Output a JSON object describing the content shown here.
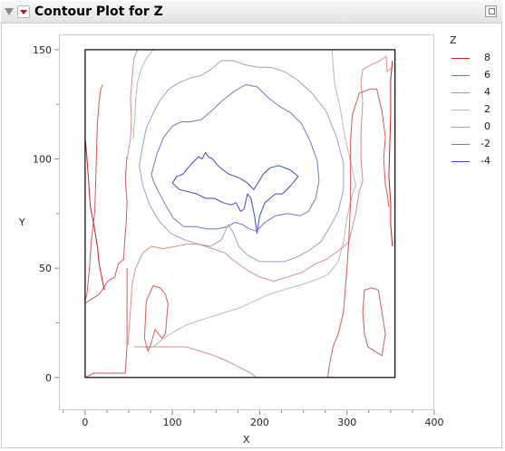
{
  "report": {
    "title": "Contour Plot for Z"
  },
  "colors": {
    "8": "#cc1f1f",
    "6": "#d45a5a",
    "4": "#d58f8f",
    "2": "#b8b8b8",
    "0": "#9aa0c8",
    "-2": "#6f78c8",
    "-4": "#3a48c2"
  },
  "chart_data": {
    "type": "contour",
    "xlabel": "X",
    "ylabel": "Y",
    "xlim": [
      -30,
      400
    ],
    "ylim": [
      -15,
      157
    ],
    "xticks": [
      0,
      100,
      200,
      300,
      400
    ],
    "yticks": [
      0,
      50,
      100,
      150
    ],
    "x_minor_step": 25,
    "y_minor_step": 25,
    "data_extent": {
      "x": [
        0,
        355
      ],
      "y": [
        0,
        150
      ]
    },
    "legend": {
      "title": "Z",
      "position": "right",
      "levels": [
        "8",
        "6",
        "4",
        "2",
        "0",
        "-2",
        "-4"
      ]
    },
    "contours": [
      {
        "level": -4,
        "points": [
          [
            100,
            89
          ],
          [
            105,
            92
          ],
          [
            112,
            93
          ],
          [
            118,
            96
          ],
          [
            125,
            99
          ],
          [
            130,
            101
          ],
          [
            134,
            100
          ],
          [
            138,
            103
          ],
          [
            141,
            101
          ],
          [
            146,
            100
          ],
          [
            152,
            97
          ],
          [
            158,
            95
          ],
          [
            165,
            93
          ],
          [
            172,
            92
          ],
          [
            178,
            91
          ],
          [
            186,
            89
          ],
          [
            193,
            86
          ],
          [
            198,
            89
          ],
          [
            204,
            93
          ],
          [
            212,
            96
          ],
          [
            222,
            97
          ],
          [
            235,
            95
          ],
          [
            244,
            92
          ],
          [
            236,
            88
          ],
          [
            226,
            84
          ],
          [
            218,
            84
          ],
          [
            212,
            82
          ],
          [
            206,
            80
          ],
          [
            200,
            74
          ],
          [
            197,
            66
          ],
          [
            194,
            74
          ],
          [
            190,
            82
          ],
          [
            186,
            84
          ],
          [
            182,
            77
          ],
          [
            178,
            76
          ],
          [
            173,
            80
          ],
          [
            167,
            79
          ],
          [
            158,
            80
          ],
          [
            148,
            82
          ],
          [
            138,
            82
          ],
          [
            128,
            84
          ],
          [
            118,
            85
          ],
          [
            108,
            86
          ],
          [
            100,
            89
          ]
        ]
      },
      {
        "level": -2,
        "points": [
          [
            76,
            93
          ],
          [
            82,
            102
          ],
          [
            90,
            110
          ],
          [
            100,
            115
          ],
          [
            110,
            117
          ],
          [
            120,
            117
          ],
          [
            133,
            118
          ],
          [
            145,
            122
          ],
          [
            158,
            127
          ],
          [
            171,
            131
          ],
          [
            184,
            134
          ],
          [
            197,
            133
          ],
          [
            210,
            128
          ],
          [
            223,
            124
          ],
          [
            236,
            121
          ],
          [
            248,
            116
          ],
          [
            258,
            108
          ],
          [
            266,
            99
          ],
          [
            268,
            90
          ],
          [
            264,
            82
          ],
          [
            256,
            76
          ],
          [
            246,
            74
          ],
          [
            232,
            75
          ],
          [
            218,
            74
          ],
          [
            206,
            71
          ],
          [
            196,
            67
          ],
          [
            188,
            68
          ],
          [
            180,
            70
          ],
          [
            172,
            71
          ],
          [
            163,
            69
          ],
          [
            152,
            68
          ],
          [
            140,
            68
          ],
          [
            126,
            69
          ],
          [
            113,
            69
          ],
          [
            101,
            73
          ],
          [
            92,
            79
          ],
          [
            84,
            85
          ],
          [
            78,
            90
          ],
          [
            76,
            93
          ]
        ]
      },
      {
        "level": 0,
        "points": [
          [
            62,
            97
          ],
          [
            66,
            106
          ],
          [
            70,
            114
          ],
          [
            78,
            121
          ],
          [
            86,
            127
          ],
          [
            96,
            132
          ],
          [
            108,
            135
          ],
          [
            120,
            137
          ],
          [
            132,
            138
          ],
          [
            144,
            141
          ],
          [
            156,
            145
          ],
          [
            170,
            145
          ],
          [
            184,
            143
          ],
          [
            198,
            142
          ],
          [
            212,
            142
          ],
          [
            228,
            140
          ],
          [
            244,
            136
          ],
          [
            260,
            130
          ],
          [
            276,
            122
          ],
          [
            288,
            110
          ],
          [
            296,
            98
          ],
          [
            296,
            86
          ],
          [
            290,
            76
          ],
          [
            282,
            70
          ],
          [
            270,
            62
          ],
          [
            256,
            58
          ],
          [
            242,
            55
          ],
          [
            228,
            53
          ],
          [
            214,
            53
          ],
          [
            200,
            53
          ],
          [
            186,
            56
          ],
          [
            176,
            60
          ],
          [
            170,
            66
          ],
          [
            164,
            70
          ],
          [
            156,
            63
          ],
          [
            144,
            60
          ],
          [
            130,
            61
          ],
          [
            114,
            63
          ],
          [
            98,
            66
          ],
          [
            84,
            72
          ],
          [
            74,
            79
          ],
          [
            66,
            88
          ],
          [
            62,
            97
          ]
        ]
      },
      {
        "level": 2,
        "points": [
          [
            55,
            109
          ],
          [
            57,
            119
          ],
          [
            58,
            127
          ],
          [
            60,
            135
          ],
          [
            64,
            141
          ],
          [
            70,
            146
          ],
          [
            78,
            150
          ]
        ]
      },
      {
        "level": 2,
        "points": [
          [
            78,
            14
          ],
          [
            90,
            18
          ],
          [
            102,
            21
          ],
          [
            116,
            24
          ],
          [
            130,
            26
          ],
          [
            146,
            28
          ],
          [
            162,
            30
          ],
          [
            178,
            32
          ],
          [
            194,
            35
          ],
          [
            210,
            38
          ],
          [
            226,
            40
          ],
          [
            244,
            42
          ],
          [
            260,
            44
          ],
          [
            278,
            47
          ],
          [
            290,
            53
          ],
          [
            296,
            62
          ],
          [
            300,
            73
          ],
          [
            305,
            82
          ],
          [
            310,
            88
          ],
          [
            306,
            96
          ],
          [
            300,
            106
          ],
          [
            296,
            114
          ],
          [
            292,
            124
          ],
          [
            286,
            134
          ],
          [
            284,
            143
          ],
          [
            283,
            150
          ]
        ]
      },
      {
        "level": 4,
        "points": [
          [
            48,
            100
          ],
          [
            52,
            109
          ],
          [
            53,
            118
          ],
          [
            52,
            128
          ],
          [
            54,
            138
          ],
          [
            56,
            146
          ],
          [
            60,
            150
          ]
        ]
      },
      {
        "level": 4,
        "points": [
          [
            70,
            150
          ],
          [
            80,
            150
          ],
          [
            86,
            150
          ]
        ]
      },
      {
        "level": 4,
        "points": [
          [
            49,
            15
          ],
          [
            52,
            31
          ],
          [
            54,
            43
          ],
          [
            58,
            50
          ],
          [
            66,
            57
          ],
          [
            76,
            60
          ],
          [
            90,
            59
          ],
          [
            104,
            60
          ],
          [
            116,
            61
          ],
          [
            130,
            61
          ],
          [
            146,
            59
          ],
          [
            160,
            57
          ],
          [
            172,
            53
          ],
          [
            186,
            49
          ],
          [
            200,
            46
          ],
          [
            216,
            44
          ],
          [
            232,
            46
          ],
          [
            248,
            48
          ],
          [
            264,
            52
          ],
          [
            276,
            54
          ],
          [
            290,
            58
          ],
          [
            302,
            62
          ],
          [
            310,
            75
          ],
          [
            314,
            85
          ],
          [
            318,
            90
          ],
          [
            316,
            100
          ],
          [
            316,
            112
          ],
          [
            318,
            126
          ],
          [
            316,
            135
          ],
          [
            318,
            141
          ],
          [
            327,
            143
          ],
          [
            338,
            145
          ],
          [
            345,
            147
          ],
          [
            346,
            140
          ],
          [
            352,
            142
          ]
        ]
      },
      {
        "level": 4,
        "points": [
          [
            56,
            14
          ],
          [
            70,
            14
          ],
          [
            84,
            14
          ],
          [
            100,
            14
          ],
          [
            116,
            14
          ],
          [
            132,
            12
          ],
          [
            148,
            10
          ],
          [
            160,
            8
          ],
          [
            170,
            6
          ],
          [
            180,
            4
          ],
          [
            190,
            2
          ],
          [
            196,
            0
          ]
        ]
      },
      {
        "level": 6,
        "points": [
          [
            0,
            35
          ],
          [
            2,
            38
          ],
          [
            5,
            50
          ],
          [
            7,
            62
          ],
          [
            11,
            76
          ],
          [
            12,
            88
          ],
          [
            13,
            102
          ],
          [
            14,
            116
          ],
          [
            16,
            126
          ],
          [
            18,
            132
          ],
          [
            20,
            134
          ]
        ]
      },
      {
        "level": 6,
        "points": [
          [
            0,
            34
          ],
          [
            8,
            36
          ],
          [
            16,
            38
          ],
          [
            26,
            44
          ],
          [
            34,
            46
          ],
          [
            38,
            52
          ],
          [
            44,
            54
          ],
          [
            46,
            66
          ],
          [
            47,
            70
          ],
          [
            48,
            80
          ],
          [
            46,
            91
          ],
          [
            48,
            101
          ]
        ]
      },
      {
        "level": 6,
        "points": [
          [
            0,
            0
          ],
          [
            10,
            2
          ],
          [
            22,
            2
          ],
          [
            36,
            2
          ],
          [
            46,
            2
          ],
          [
            48,
            15
          ],
          [
            48,
            30
          ],
          [
            48,
            40
          ],
          [
            48,
            50
          ]
        ]
      },
      {
        "level": 6,
        "points": [
          [
            70,
            35
          ],
          [
            68,
            18
          ],
          [
            72,
            12
          ],
          [
            76,
            16
          ],
          [
            80,
            22
          ],
          [
            88,
            18
          ],
          [
            92,
            20
          ],
          [
            95,
            34
          ],
          [
            92,
            38
          ],
          [
            86,
            41
          ],
          [
            78,
            42
          ],
          [
            70,
            35
          ]
        ]
      },
      {
        "level": 6,
        "points": [
          [
            336,
            40
          ],
          [
            340,
            30
          ],
          [
            344,
            20
          ],
          [
            340,
            10
          ],
          [
            332,
            12
          ],
          [
            324,
            14
          ],
          [
            320,
            20
          ],
          [
            318,
            30
          ],
          [
            320,
            40
          ],
          [
            328,
            41
          ],
          [
            336,
            40
          ]
        ]
      },
      {
        "level": 6,
        "points": [
          [
            278,
            0
          ],
          [
            280,
            6
          ],
          [
            284,
            14
          ],
          [
            290,
            20
          ],
          [
            296,
            30
          ],
          [
            298,
            40
          ],
          [
            300,
            50
          ],
          [
            302,
            62
          ],
          [
            304,
            80
          ],
          [
            304,
            94
          ],
          [
            304,
            108
          ],
          [
            306,
            120
          ],
          [
            314,
            130
          ],
          [
            326,
            132
          ],
          [
            334,
            132
          ],
          [
            340,
            122
          ],
          [
            344,
            110
          ],
          [
            342,
            100
          ],
          [
            344,
            88
          ],
          [
            346,
            84
          ],
          [
            348,
            78
          ]
        ]
      },
      {
        "level": 8,
        "points": [
          [
            0,
            110
          ],
          [
            2,
            101
          ],
          [
            4,
            90
          ],
          [
            6,
            78
          ],
          [
            10,
            70
          ],
          [
            14,
            60
          ],
          [
            16,
            52
          ],
          [
            20,
            44
          ],
          [
            22,
            40
          ]
        ]
      },
      {
        "level": 8,
        "points": [
          [
            352,
            145
          ],
          [
            350,
            136
          ],
          [
            350,
            120
          ],
          [
            349,
            106
          ],
          [
            348,
            92
          ],
          [
            350,
            80
          ],
          [
            350,
            70
          ],
          [
            352,
            60
          ]
        ]
      }
    ]
  }
}
